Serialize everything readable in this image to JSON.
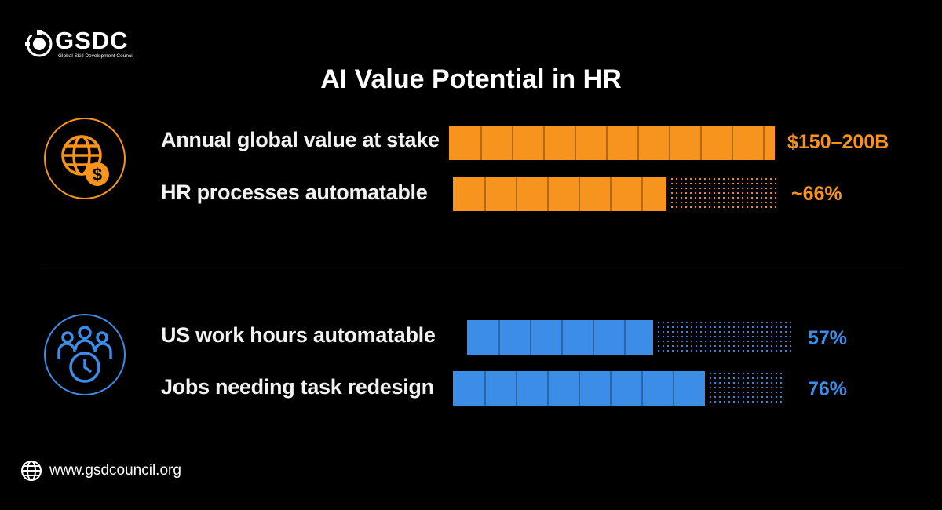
{
  "brand": {
    "name": "GSDC",
    "tagline": "Global Skill Development Council"
  },
  "title": "AI Value Potential in HR",
  "colors": {
    "orange": "#f7941d",
    "blue": "#3b8de8",
    "background": "#000000"
  },
  "chart_data": [
    {
      "type": "bar",
      "group_icon": "globe-dollar-icon",
      "rows": [
        {
          "label": "Annual global value at stake",
          "value_text": "$150–200B",
          "fill_fraction": 1.0
        },
        {
          "label": "HR processes automatable",
          "value_text": "~66%",
          "fill_fraction": 0.66
        }
      ]
    },
    {
      "type": "bar",
      "group_icon": "team-clock-icon",
      "rows": [
        {
          "label": "US work hours automatable",
          "value_text": "57%",
          "fill_fraction": 0.57
        },
        {
          "label": "Jobs needing task redesign",
          "value_text": "76%",
          "fill_fraction": 0.76
        }
      ]
    }
  ],
  "footer": {
    "website": "www.gsdcouncil.org",
    "icon": "globe-icon"
  }
}
